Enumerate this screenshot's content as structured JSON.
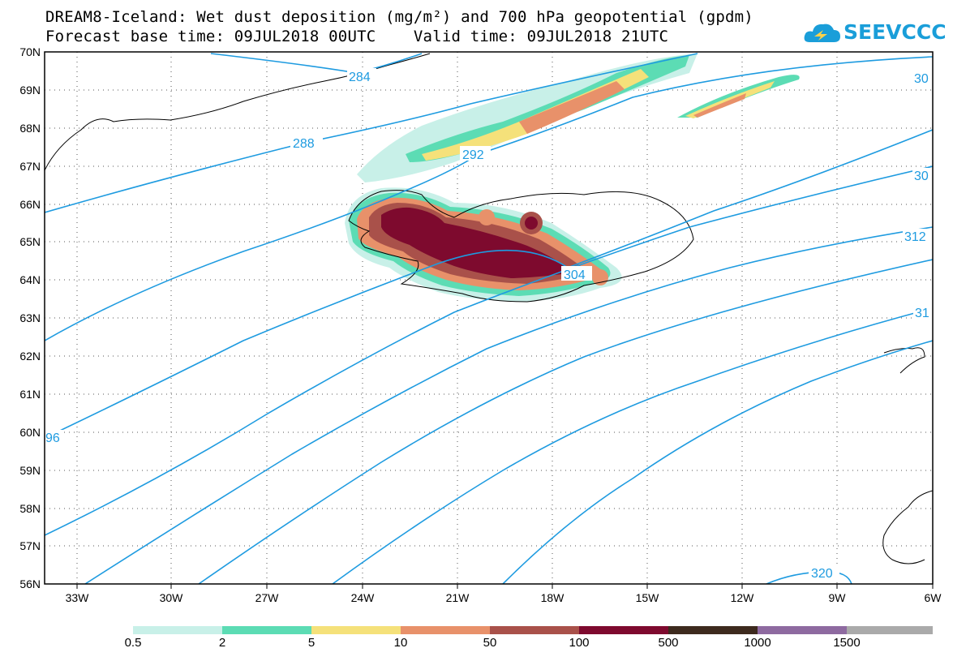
{
  "header": {
    "title_line1": "DREAM8-Iceland: Wet dust deposition (mg/m²) and 700 hPa geopotential (gpdm)",
    "title_line2": "Forecast base time: 09JUL2018 00UTC    Valid time: 09JUL2018 21UTC"
  },
  "logo": {
    "text": "SEEVCCC",
    "icon": "cloud-icon",
    "color": "#1a9ed9"
  },
  "axes": {
    "lat_labels": [
      "70N",
      "69N",
      "68N",
      "67N",
      "66N",
      "65N",
      "64N",
      "63N",
      "62N",
      "61N",
      "60N",
      "59N",
      "58N",
      "57N",
      "56N"
    ],
    "lon_labels": [
      "33W",
      "30W",
      "27W",
      "24W",
      "21W",
      "18W",
      "15W",
      "12W",
      "9W",
      "6W"
    ]
  },
  "contour_labels": [
    "284",
    "288",
    "292",
    "304",
    "30",
    "30",
    "312",
    "31",
    "96",
    "320"
  ],
  "legend": {
    "ticks": [
      "0.5",
      "2",
      "5",
      "10",
      "50",
      "100",
      "500",
      "1000",
      "1500"
    ],
    "colors": [
      "#c8f0e8",
      "#5cdcb4",
      "#f5e17a",
      "#e8916a",
      "#a9514a",
      "#7e0a2e",
      "#3d2a1e",
      "#8e6aa0",
      "#aaaaaa"
    ]
  },
  "colors": {
    "contour": "#1e9be0",
    "coast": "#000000",
    "grid": "#555555"
  }
}
